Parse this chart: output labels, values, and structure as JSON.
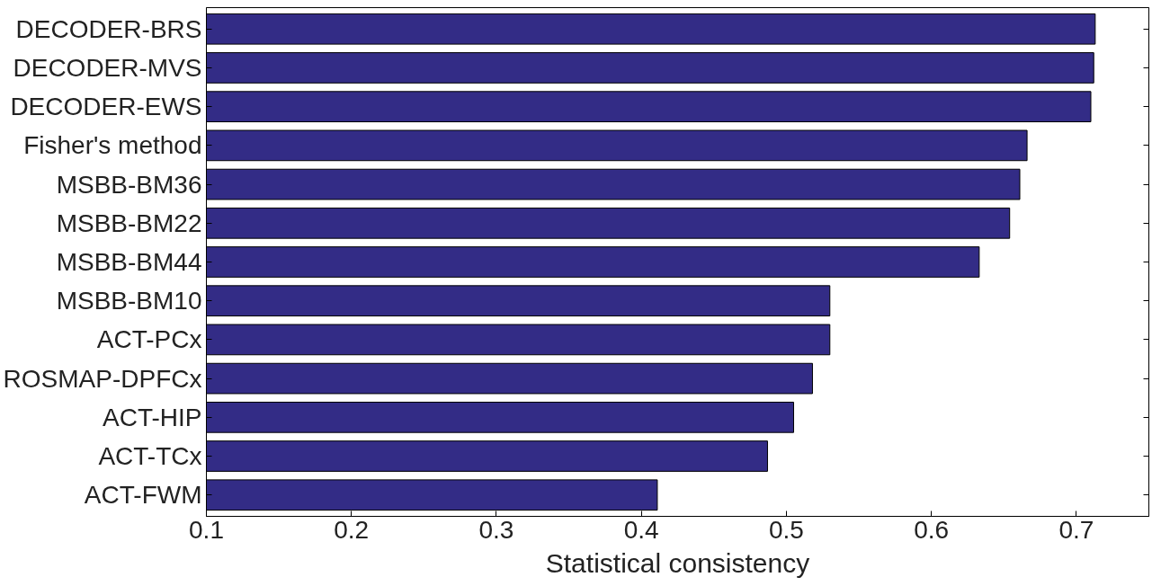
{
  "chart_data": {
    "type": "bar",
    "orientation": "horizontal",
    "xlabel": "Statistical consistency",
    "categories": [
      "DECODER-BRS",
      "DECODER-MVS",
      "DECODER-EWS",
      "Fisher's method",
      "MSBB-BM36",
      "MSBB-BM22",
      "MSBB-BM44",
      "MSBB-BM10",
      "ACT-PCx",
      "ROSMAP-DPFCx",
      "ACT-HIP",
      "ACT-TCx",
      "ACT-FWM"
    ],
    "values": [
      0.713,
      0.712,
      0.71,
      0.666,
      0.661,
      0.654,
      0.633,
      0.53,
      0.53,
      0.518,
      0.505,
      0.487,
      0.411
    ],
    "color": "#332c86",
    "xlim": [
      0.1,
      0.75
    ],
    "xticks": [
      0.1,
      0.2,
      0.3,
      0.4,
      0.5,
      0.6,
      0.7
    ],
    "grid": false
  }
}
